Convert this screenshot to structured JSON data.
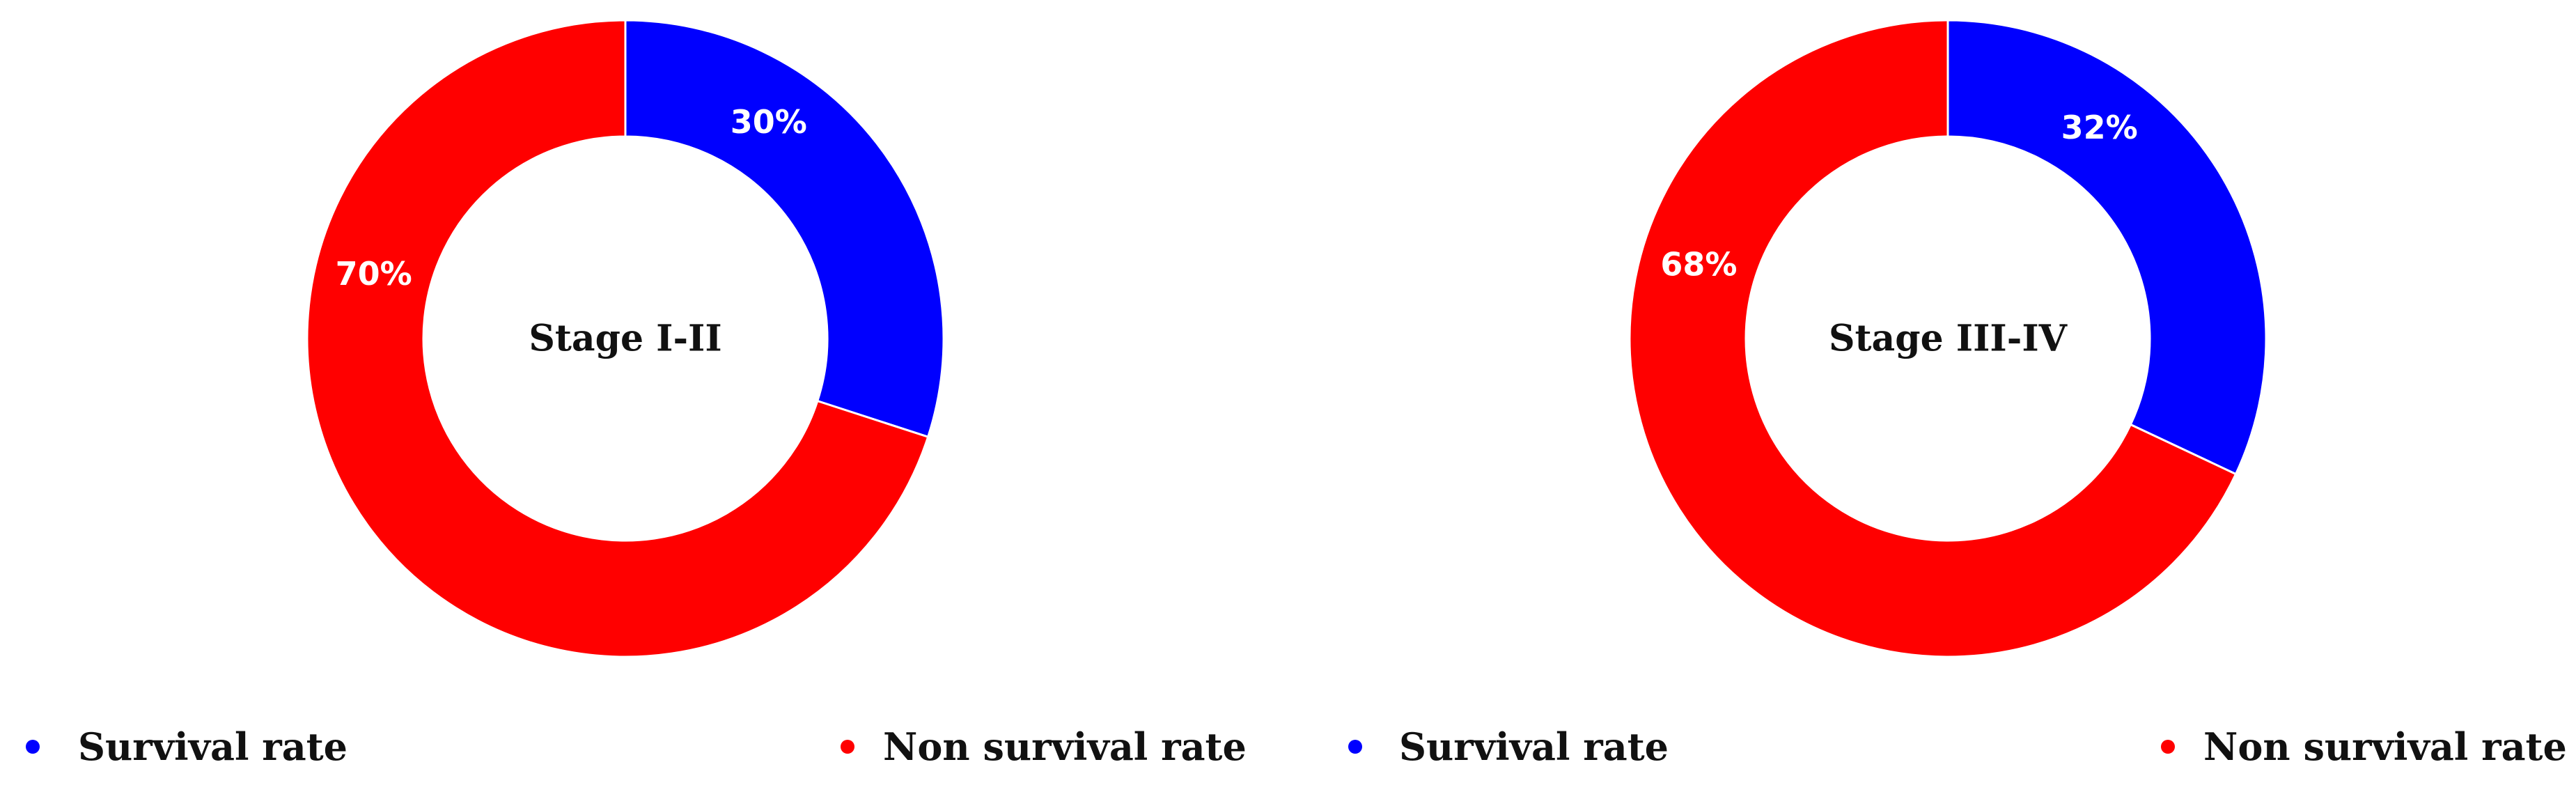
{
  "chart_data": [
    {
      "type": "pie",
      "variant": "donut",
      "center_label": "Stage I-II",
      "slices": [
        {
          "name": "Survival rate",
          "value": 30,
          "label": "30%",
          "color": "#0000ff"
        },
        {
          "name": "Non survival rate",
          "value": 70,
          "label": "70%",
          "color": "#ff0000"
        }
      ],
      "legend": [
        {
          "label": "Survival rate",
          "color": "#0000ff"
        },
        {
          "label": "Non survival rate",
          "color": "#ff0000"
        }
      ],
      "legend_position": "bottom"
    },
    {
      "type": "pie",
      "variant": "donut",
      "center_label": "Stage III-IV",
      "slices": [
        {
          "name": "Survival rate",
          "value": 32,
          "label": "32%",
          "color": "#0000ff"
        },
        {
          "name": "Non survival rate",
          "value": 68,
          "label": "68%",
          "color": "#ff0000"
        }
      ],
      "legend": [
        {
          "label": "Survival rate",
          "color": "#0000ff"
        },
        {
          "label": "Non survival rate",
          "color": "#ff0000"
        }
      ],
      "legend_position": "bottom"
    }
  ]
}
